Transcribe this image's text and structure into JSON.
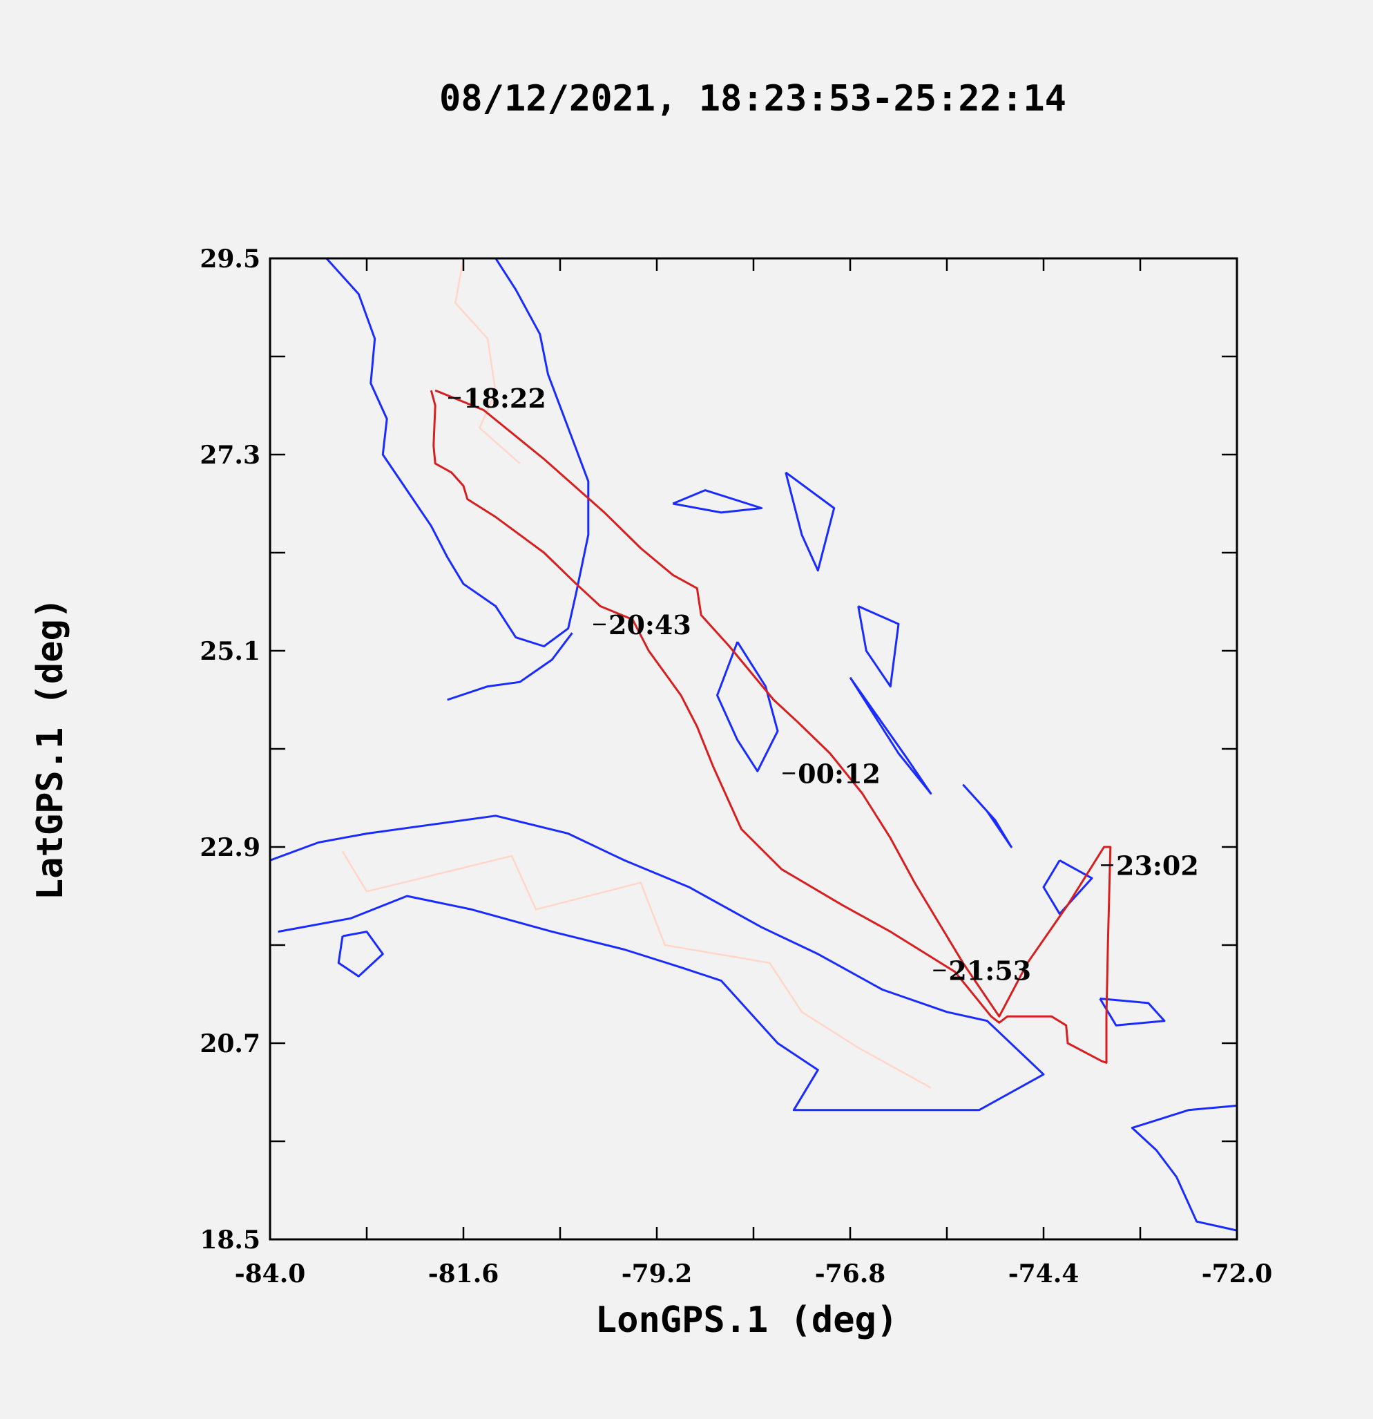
{
  "title": "08/12/2021, 18:23:53-25:22:14",
  "colors": {
    "track": "#d81e1e",
    "coastline": "#1a2bff",
    "borders": "#ffd6c8",
    "background": "#f2f2f2"
  },
  "chart_data": {
    "type": "map",
    "xlabel": "LonGPS.1 (deg)",
    "ylabel": "LatGPS.1 (deg)",
    "xlim": [
      -84.0,
      -72.0
    ],
    "ylim": [
      18.5,
      29.5
    ],
    "x_ticks": [
      "-84.0",
      "-81.6",
      "-79.2",
      "-76.8",
      "-74.4",
      "-72.0"
    ],
    "y_ticks": [
      "29.5",
      "27.3",
      "25.1",
      "22.9",
      "20.7",
      "18.5"
    ],
    "x_tick_values": [
      -84.0,
      -81.6,
      -79.2,
      -76.8,
      -74.4,
      -72.0
    ],
    "y_tick_values": [
      29.5,
      27.3,
      25.1,
      22.9,
      20.7,
      18.5
    ],
    "minor_x_ticks": [
      -82.8,
      -80.4,
      -78.0,
      -75.6,
      -73.2
    ],
    "minor_y_ticks": [
      28.4,
      26.2,
      24.0,
      21.8,
      19.6
    ],
    "grid": false,
    "flight_track": [
      [
        -82.0,
        28.02
      ],
      [
        -81.95,
        27.85
      ],
      [
        -81.97,
        27.4
      ],
      [
        -81.95,
        27.2
      ],
      [
        -81.75,
        27.1
      ],
      [
        -81.6,
        26.95
      ],
      [
        -81.55,
        26.8
      ],
      [
        -81.2,
        26.6
      ],
      [
        -80.6,
        26.2
      ],
      [
        -80.2,
        25.85
      ],
      [
        -79.9,
        25.6
      ],
      [
        -79.5,
        25.45
      ],
      [
        -79.3,
        25.1
      ],
      [
        -78.9,
        24.6
      ],
      [
        -78.7,
        24.25
      ],
      [
        -78.5,
        23.8
      ],
      [
        -78.15,
        23.1
      ],
      [
        -77.65,
        22.65
      ],
      [
        -76.9,
        22.25
      ],
      [
        -76.3,
        21.95
      ],
      [
        -75.5,
        21.5
      ],
      [
        -75.05,
        21.0
      ],
      [
        -74.95,
        20.93
      ],
      [
        -74.85,
        21.0
      ],
      [
        -74.3,
        21.0
      ],
      [
        -74.12,
        20.9
      ],
      [
        -74.1,
        20.7
      ],
      [
        -73.68,
        20.5
      ],
      [
        -73.62,
        20.48
      ],
      [
        -73.62,
        21.0
      ],
      [
        -73.6,
        21.85
      ],
      [
        -73.57,
        22.9
      ],
      [
        -73.65,
        22.9
      ],
      [
        -74.1,
        22.25
      ],
      [
        -74.6,
        21.6
      ],
      [
        -74.95,
        21.0
      ],
      [
        -75.4,
        21.6
      ],
      [
        -76.0,
        22.5
      ],
      [
        -76.3,
        23.0
      ],
      [
        -76.65,
        23.5
      ],
      [
        -77.05,
        23.95
      ],
      [
        -77.45,
        24.3
      ],
      [
        -77.75,
        24.55
      ],
      [
        -78.3,
        25.15
      ],
      [
        -78.65,
        25.5
      ],
      [
        -78.7,
        25.8
      ],
      [
        -79.0,
        25.95
      ],
      [
        -79.4,
        26.25
      ],
      [
        -79.85,
        26.65
      ],
      [
        -80.6,
        27.25
      ],
      [
        -81.35,
        27.8
      ],
      [
        -81.95,
        28.02
      ]
    ],
    "time_labels": [
      {
        "text": "18:22",
        "lon": -81.6,
        "lat": 27.92
      },
      {
        "text": "20:43",
        "lon": -79.8,
        "lat": 25.38
      },
      {
        "text": "00:12",
        "lon": -77.45,
        "lat": 23.71
      },
      {
        "text": "23:02",
        "lon": -73.5,
        "lat": 22.68
      },
      {
        "text": "21:53",
        "lon": -75.58,
        "lat": 21.5
      }
    ]
  }
}
